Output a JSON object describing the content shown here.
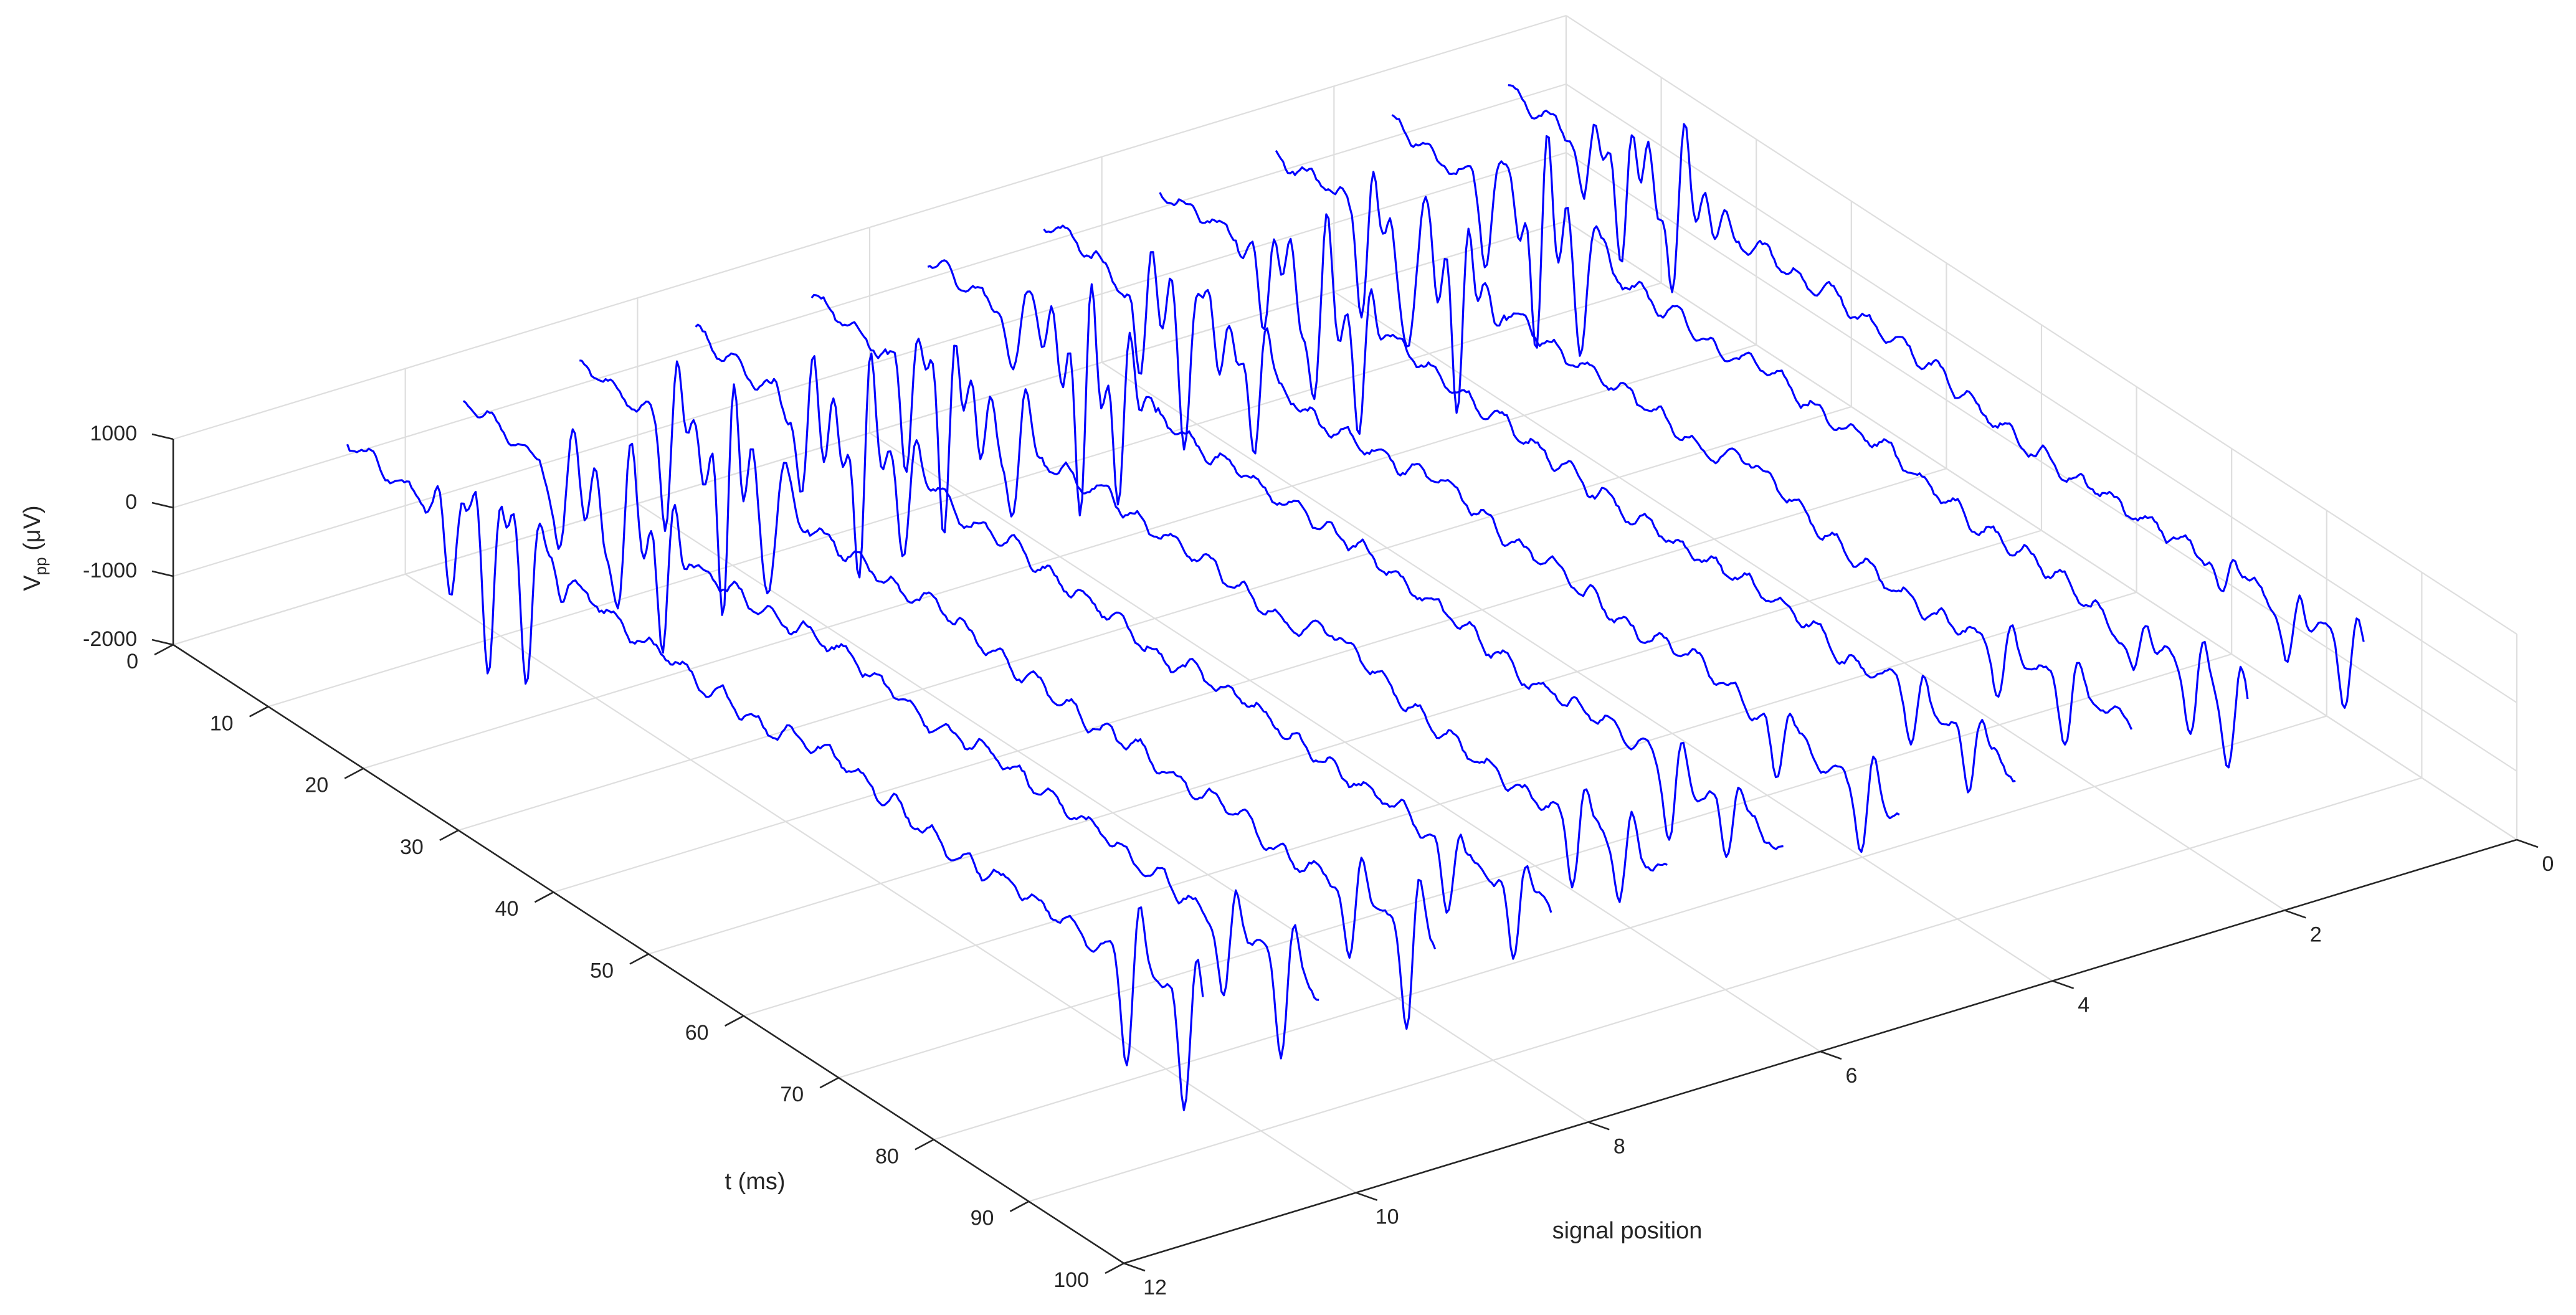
{
  "chart_data": {
    "type": "line",
    "subtype": "3d-waterfall",
    "title": "",
    "xlabel": "t (ms)",
    "ylabel": "signal position",
    "zlabel_main": "V",
    "zlabel_sub": "pp",
    "zlabel_unit": "(μV)",
    "xlim": [
      0,
      100
    ],
    "ylim": [
      0,
      12
    ],
    "zlim": [
      -2000,
      1000
    ],
    "x_ticks": [
      "0",
      "10",
      "20",
      "30",
      "40",
      "50",
      "60",
      "70",
      "80",
      "90",
      "100"
    ],
    "y_ticks": [
      "0",
      "2",
      "4",
      "6",
      "8",
      "10",
      "12"
    ],
    "z_ticks": [
      "-2000",
      "-1000",
      "0",
      "1000"
    ],
    "grid": true,
    "line_color": "#0000ff",
    "series": [
      {
        "signal_position": 0.5,
        "t_start": 0,
        "t_end": 90,
        "spike_t": [
          8,
          12,
          17,
          75,
          82,
          88
        ],
        "spike_amp": [
          -900,
          -1400,
          -1600,
          -500,
          -800,
          -900
        ]
      },
      {
        "signal_position": 1.5,
        "t_start": 0,
        "t_end": 90,
        "spike_t": [
          10,
          15,
          20,
          78,
          84,
          88
        ],
        "spike_amp": [
          -1200,
          -1800,
          -1500,
          -600,
          -900,
          -1000
        ]
      },
      {
        "signal_position": 2.5,
        "t_start": 0,
        "t_end": 90,
        "spike_t": [
          9,
          14,
          19,
          76,
          83
        ],
        "spike_amp": [
          -1300,
          -1900,
          -1600,
          -700,
          -800
        ]
      },
      {
        "signal_position": 3.5,
        "t_start": 0,
        "t_end": 90,
        "spike_t": [
          11,
          16,
          21,
          79,
          85
        ],
        "spike_amp": [
          -1000,
          -1700,
          -1400,
          -700,
          -900
        ]
      },
      {
        "signal_position": 4.5,
        "t_start": 0,
        "t_end": 90,
        "spike_t": [
          10,
          15,
          22,
          77,
          86
        ],
        "spike_amp": [
          -1200,
          -1800,
          -1300,
          -800,
          -1000
        ]
      },
      {
        "signal_position": 5.5,
        "t_start": 0,
        "t_end": 90,
        "spike_t": [
          9,
          16,
          20,
          78,
          84
        ],
        "spike_amp": [
          -1100,
          -1900,
          -1500,
          -900,
          -800
        ]
      },
      {
        "signal_position": 6.5,
        "t_start": 0,
        "t_end": 90,
        "spike_t": [
          10,
          14,
          21,
          80,
          85
        ],
        "spike_amp": [
          -1300,
          -1600,
          -1400,
          -1000,
          -900
        ]
      },
      {
        "signal_position": 7.5,
        "t_start": 0,
        "t_end": 90,
        "spike_t": [
          11,
          17,
          22,
          79,
          86
        ],
        "spike_amp": [
          -1200,
          -1800,
          -1200,
          -900,
          -1100
        ]
      },
      {
        "signal_position": 8.5,
        "t_start": 0,
        "t_end": 90,
        "spike_t": [
          9,
          15,
          20,
          81,
          87
        ],
        "spike_amp": [
          -1400,
          -1900,
          -1500,
          -1200,
          -1400
        ]
      },
      {
        "signal_position": 9.5,
        "t_start": 0,
        "t_end": 90,
        "spike_t": [
          10,
          16,
          21,
          80,
          86
        ],
        "spike_amp": [
          -1300,
          -1700,
          -1400,
          -1100,
          -1300
        ]
      },
      {
        "signal_position": 10.5,
        "t_start": 0,
        "t_end": 90,
        "spike_t": [
          11,
          15,
          19,
          82,
          88
        ],
        "spike_amp": [
          -1200,
          -1800,
          -1600,
          -1500,
          -1700
        ]
      }
    ]
  }
}
